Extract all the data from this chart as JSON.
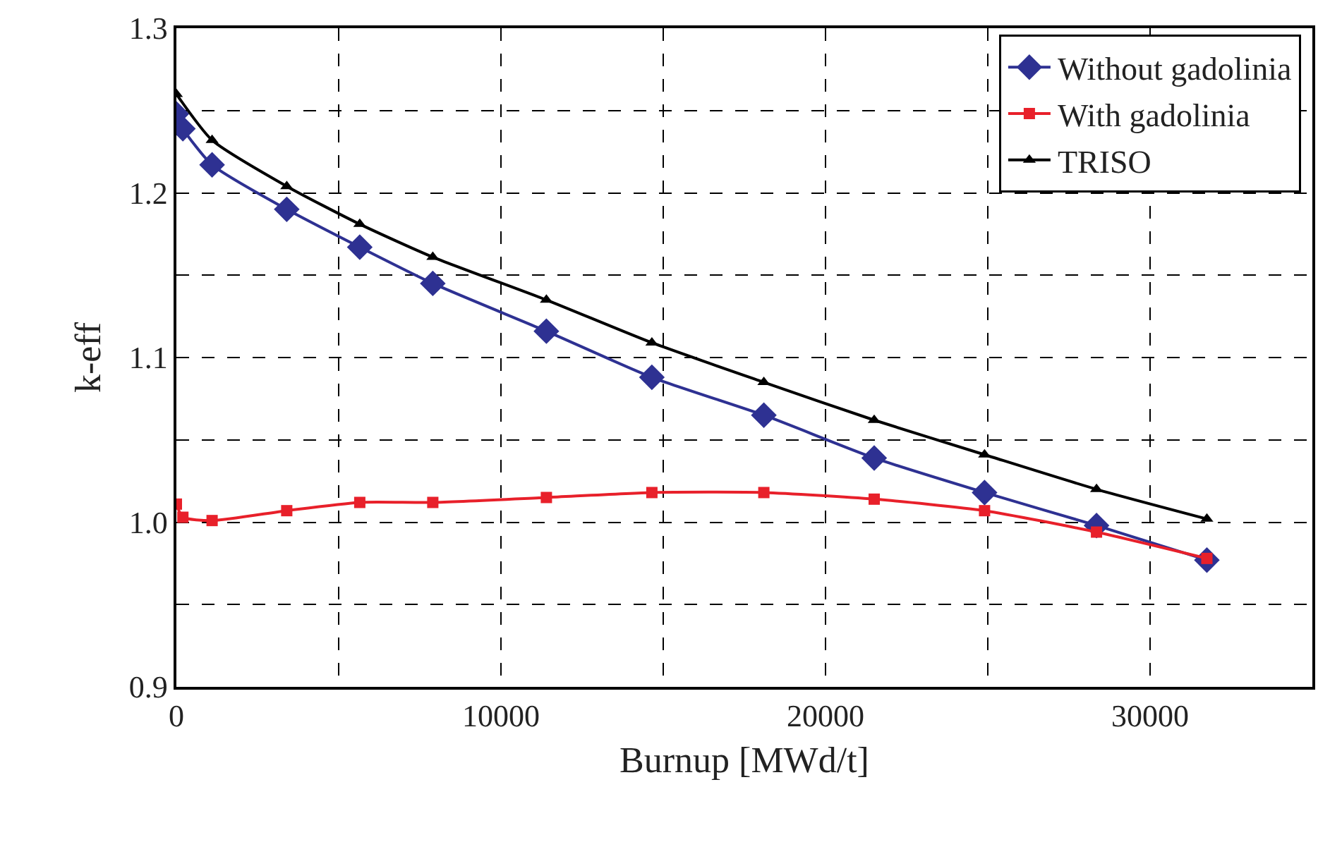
{
  "chart_data": {
    "type": "line",
    "xlabel": "Burnup [MWd/t]",
    "ylabel": "k-eff",
    "xlim": [
      0,
      35000
    ],
    "xticks": [
      {
        "value": 0,
        "label": "0"
      },
      {
        "value": 5000,
        "label": null
      },
      10000,
      {
        "value": 15000,
        "label": null
      },
      20000,
      {
        "value": 25000,
        "label": null
      },
      30000
    ],
    "ylim": [
      0.9,
      1.3
    ],
    "yticks": [
      {
        "value": 0.9,
        "label": "0.9"
      },
      {
        "value": 0.95,
        "label": null
      },
      {
        "value": 1.0,
        "label": "1.0"
      },
      {
        "value": 1.05,
        "label": null
      },
      1.1,
      {
        "value": 1.15,
        "label": null
      },
      1.2,
      {
        "value": 1.25,
        "label": null
      },
      1.3
    ],
    "grid": true,
    "legend": "top right",
    "line_style": "solid",
    "series": [
      {
        "name": "Without gadolinia",
        "color": "#2e3192",
        "marker": "diamond",
        "x": [
          0,
          200,
          1100,
          3400,
          5650,
          7900,
          11400,
          14650,
          18100,
          21500,
          24900,
          28350,
          31750
        ],
        "values": [
          1.248,
          1.239,
          1.217,
          1.19,
          1.167,
          1.145,
          1.116,
          1.088,
          1.065,
          1.039,
          1.018,
          0.998,
          0.977
        ]
      },
      {
        "name": "With gadolinia",
        "color": "#e8202a",
        "marker": "square",
        "x": [
          0,
          200,
          1100,
          3400,
          5650,
          7900,
          11400,
          14650,
          18100,
          21500,
          24900,
          28350,
          31750
        ],
        "values": [
          1.011,
          1.003,
          1.001,
          1.007,
          1.012,
          1.012,
          1.015,
          1.018,
          1.018,
          1.014,
          1.007,
          0.994,
          0.978
        ]
      },
      {
        "name": "TRISO",
        "color": "#000000",
        "marker": "triangle",
        "x": [
          0,
          1100,
          3400,
          5650,
          7900,
          11400,
          14650,
          18100,
          21500,
          24900,
          28350,
          31750
        ],
        "values": [
          1.26,
          1.232,
          1.204,
          1.181,
          1.161,
          1.135,
          1.109,
          1.085,
          1.062,
          1.041,
          1.02,
          1.002
        ]
      }
    ]
  }
}
